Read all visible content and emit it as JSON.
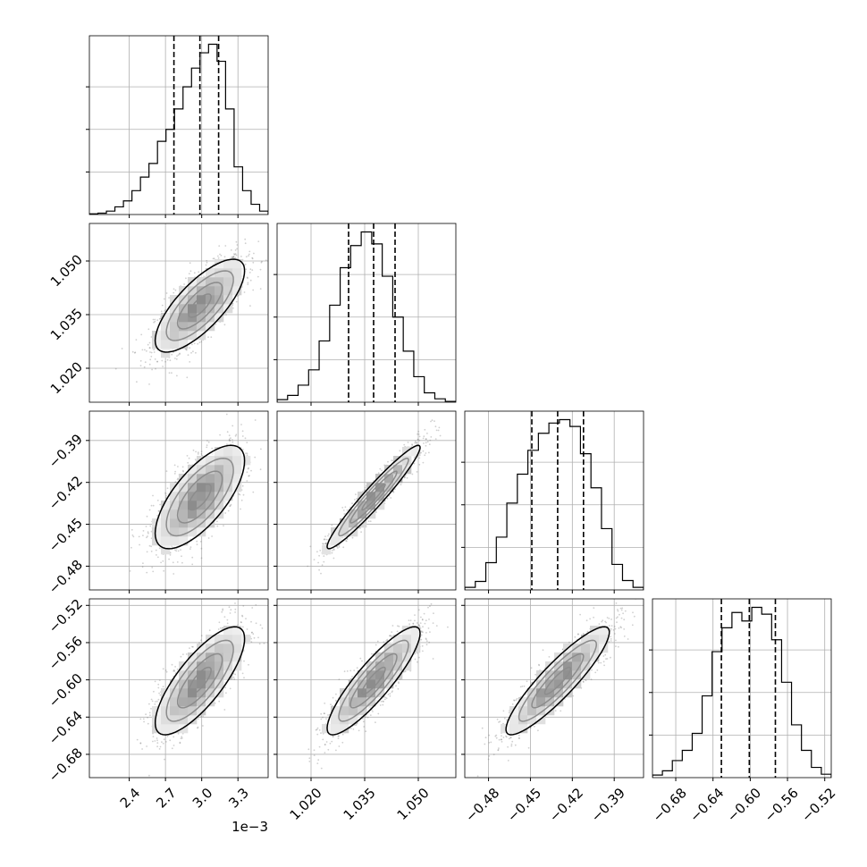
{
  "chart_data": {
    "type": "corner",
    "grid": true,
    "parameters": [
      {
        "range": [
          2.07,
          3.55
        ],
        "ticks": [
          2.4,
          2.7,
          3.0,
          3.3
        ],
        "tick_labels": [
          "2.4",
          "2.7",
          "3.0",
          "3.3"
        ],
        "offset_label": "1e−3",
        "quantiles": [
          2.77,
          2.985,
          3.14
        ],
        "histogram": [
          0.004,
          0.008,
          0.02,
          0.045,
          0.08,
          0.14,
          0.22,
          0.3,
          0.43,
          0.5,
          0.62,
          0.75,
          0.86,
          0.95,
          1.0,
          0.9,
          0.62,
          0.28,
          0.14,
          0.06,
          0.02
        ]
      },
      {
        "range": [
          1.0105,
          1.0605
        ],
        "ticks": [
          1.02,
          1.035,
          1.05
        ],
        "tick_labels": [
          "1.020",
          "1.035",
          "1.050"
        ],
        "quantiles": [
          1.0305,
          1.0375,
          1.0435
        ],
        "histogram": [
          0.015,
          0.04,
          0.1,
          0.19,
          0.36,
          0.57,
          0.79,
          0.92,
          1.0,
          0.93,
          0.74,
          0.5,
          0.3,
          0.15,
          0.055,
          0.02,
          0.005
        ]
      },
      {
        "range": [
          -0.497,
          -0.369
        ],
        "ticks": [
          -0.48,
          -0.45,
          -0.42,
          -0.39
        ],
        "tick_labels": [
          "−0.48",
          "−0.45",
          "−0.42",
          "−0.39"
        ],
        "quantiles": [
          -0.449,
          -0.4305,
          -0.412
        ],
        "histogram": [
          0.015,
          0.05,
          0.16,
          0.31,
          0.51,
          0.68,
          0.82,
          0.92,
          0.98,
          1.0,
          0.96,
          0.8,
          0.6,
          0.36,
          0.15,
          0.055,
          0.015
        ]
      },
      {
        "range": [
          -0.705,
          -0.513
        ],
        "ticks": [
          -0.68,
          -0.64,
          -0.6,
          -0.56,
          -0.52
        ],
        "tick_labels": [
          "−0.68",
          "−0.64",
          "−0.60",
          "−0.56",
          "−0.52"
        ],
        "quantiles": [
          -0.631,
          -0.601,
          -0.573
        ],
        "histogram": [
          0.015,
          0.04,
          0.1,
          0.16,
          0.26,
          0.48,
          0.74,
          0.88,
          0.97,
          0.92,
          1.0,
          0.96,
          0.81,
          0.56,
          0.31,
          0.16,
          0.06,
          0.02
        ]
      }
    ],
    "correlations": [
      [
        1.0,
        0.75,
        0.7,
        0.78
      ],
      [
        0.75,
        1.0,
        0.96,
        0.88
      ],
      [
        0.7,
        0.96,
        1.0,
        0.9
      ],
      [
        0.78,
        0.88,
        0.9,
        1.0
      ]
    ]
  }
}
